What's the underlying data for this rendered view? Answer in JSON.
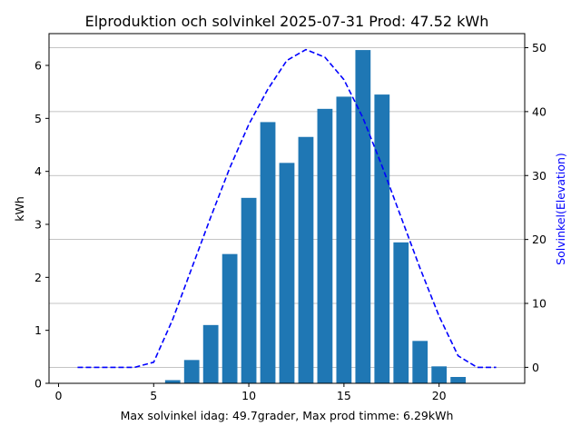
{
  "chart_data": {
    "type": "bar",
    "title": "Elproduktion och solvinkel 2025-07-31 Prod: 47.52 kWh",
    "xlabel": "Max solvinkel idag: 49.7grader, Max prod timme: 6.29kWh",
    "ylabel": "kWh",
    "y2label": "Solvinkel(Elevation)",
    "xlim": [
      -0.5,
      24.5
    ],
    "ylim": [
      0,
      6.6
    ],
    "y2lim": [
      -2.5,
      52.2
    ],
    "xticks": [
      0,
      5,
      10,
      15,
      20
    ],
    "yticks": [
      0,
      1,
      2,
      3,
      4,
      5,
      6
    ],
    "y2ticks": [
      0,
      10,
      20,
      30,
      40,
      50
    ],
    "grid": "horizontal, right axis",
    "colors": {
      "bars": "#1f77b4",
      "elevation": "#0000ff",
      "grid": "#b0b0b0"
    },
    "series": [
      {
        "type": "bar",
        "axis": "left",
        "x": [
          6,
          7,
          8,
          9,
          10,
          11,
          12,
          13,
          14,
          15,
          16,
          17,
          18,
          19,
          20,
          21
        ],
        "values": [
          0.06,
          0.44,
          1.1,
          2.44,
          3.5,
          4.93,
          4.16,
          4.65,
          5.18,
          5.41,
          6.29,
          5.45,
          2.66,
          0.8,
          0.32,
          0.12
        ]
      },
      {
        "type": "line",
        "axis": "right",
        "style": "dashed",
        "x": [
          1,
          2,
          3,
          4,
          5,
          6,
          7,
          8,
          9,
          10,
          11,
          12,
          13,
          14,
          15,
          16,
          17,
          18,
          19,
          20,
          21,
          22,
          23
        ],
        "values": [
          0,
          0,
          0,
          0,
          0.8,
          7.5,
          15.5,
          23.5,
          31.2,
          38,
          43.5,
          48,
          49.7,
          48.5,
          45,
          39,
          31.5,
          23.5,
          15.5,
          8,
          1.8,
          0,
          0
        ]
      }
    ]
  }
}
